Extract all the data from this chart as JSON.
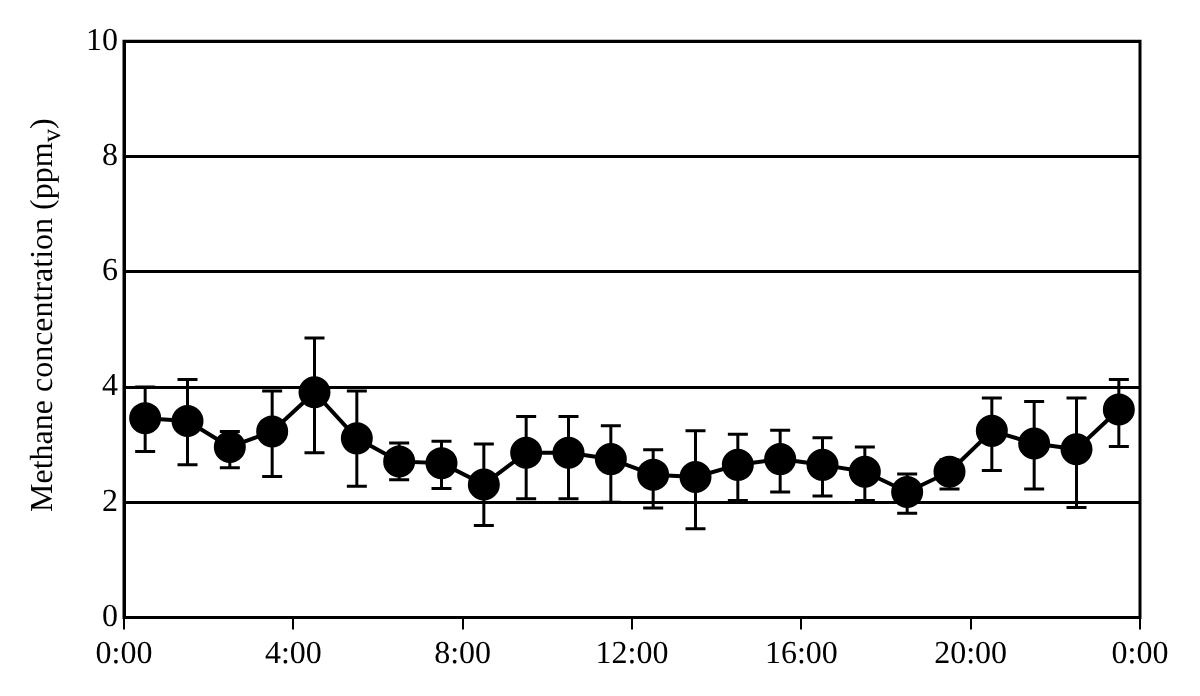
{
  "chart_data": {
    "type": "line",
    "ylabel": "Methane concentration (ppm$_{v}$)",
    "x": [
      0.5,
      1.5,
      2.5,
      3.5,
      4.5,
      5.5,
      6.5,
      7.5,
      8.5,
      9.5,
      10.5,
      11.5,
      12.5,
      13.5,
      14.5,
      15.5,
      16.5,
      17.5,
      18.5,
      19.5,
      20.5,
      21.5,
      22.5,
      23.5
    ],
    "series": [
      {
        "color": "#000000",
        "values": [
          3.46,
          3.41,
          2.96,
          3.23,
          3.91,
          3.11,
          2.71,
          2.68,
          2.31,
          2.86,
          2.86,
          2.75,
          2.48,
          2.44,
          2.65,
          2.75,
          2.65,
          2.53,
          2.18,
          2.53,
          3.24,
          3.02,
          2.92,
          3.61
        ],
        "errors": [
          [
            2.88,
            4.0
          ],
          [
            2.65,
            4.13
          ],
          [
            2.6,
            3.23
          ],
          [
            2.45,
            3.93
          ],
          [
            2.86,
            4.85
          ],
          [
            2.28,
            3.93
          ],
          [
            2.39,
            3.03
          ],
          [
            2.24,
            3.06
          ],
          [
            1.6,
            3.01
          ],
          [
            2.06,
            3.49
          ],
          [
            2.06,
            3.49
          ],
          [
            2.0,
            3.33
          ],
          [
            1.9,
            2.91
          ],
          [
            1.54,
            3.24
          ],
          [
            2.03,
            3.18
          ],
          [
            2.18,
            3.25
          ],
          [
            2.11,
            3.12
          ],
          [
            2.03,
            2.96
          ],
          [
            1.81,
            2.49
          ],
          [
            2.23,
            2.74
          ],
          [
            2.55,
            3.81
          ],
          [
            2.23,
            3.75
          ],
          [
            1.91,
            3.81
          ],
          [
            2.97,
            4.13
          ]
        ]
      }
    ],
    "xlim": [
      0,
      24
    ],
    "xticks": [
      {
        "value": 0,
        "label": "0:00"
      },
      {
        "value": 4,
        "label": "4:00"
      },
      {
        "value": 8,
        "label": "8:00"
      },
      {
        "value": 12,
        "label": "12:00"
      },
      {
        "value": 16,
        "label": "16:00"
      },
      {
        "value": 20,
        "label": "20:00"
      },
      {
        "value": 24,
        "label": "0:00"
      }
    ],
    "ylim": [
      0,
      10
    ],
    "yticks": [
      0,
      2,
      4,
      6,
      8,
      10
    ],
    "grid": "y",
    "marker": "circle",
    "line_style": "solid",
    "legend": false
  }
}
